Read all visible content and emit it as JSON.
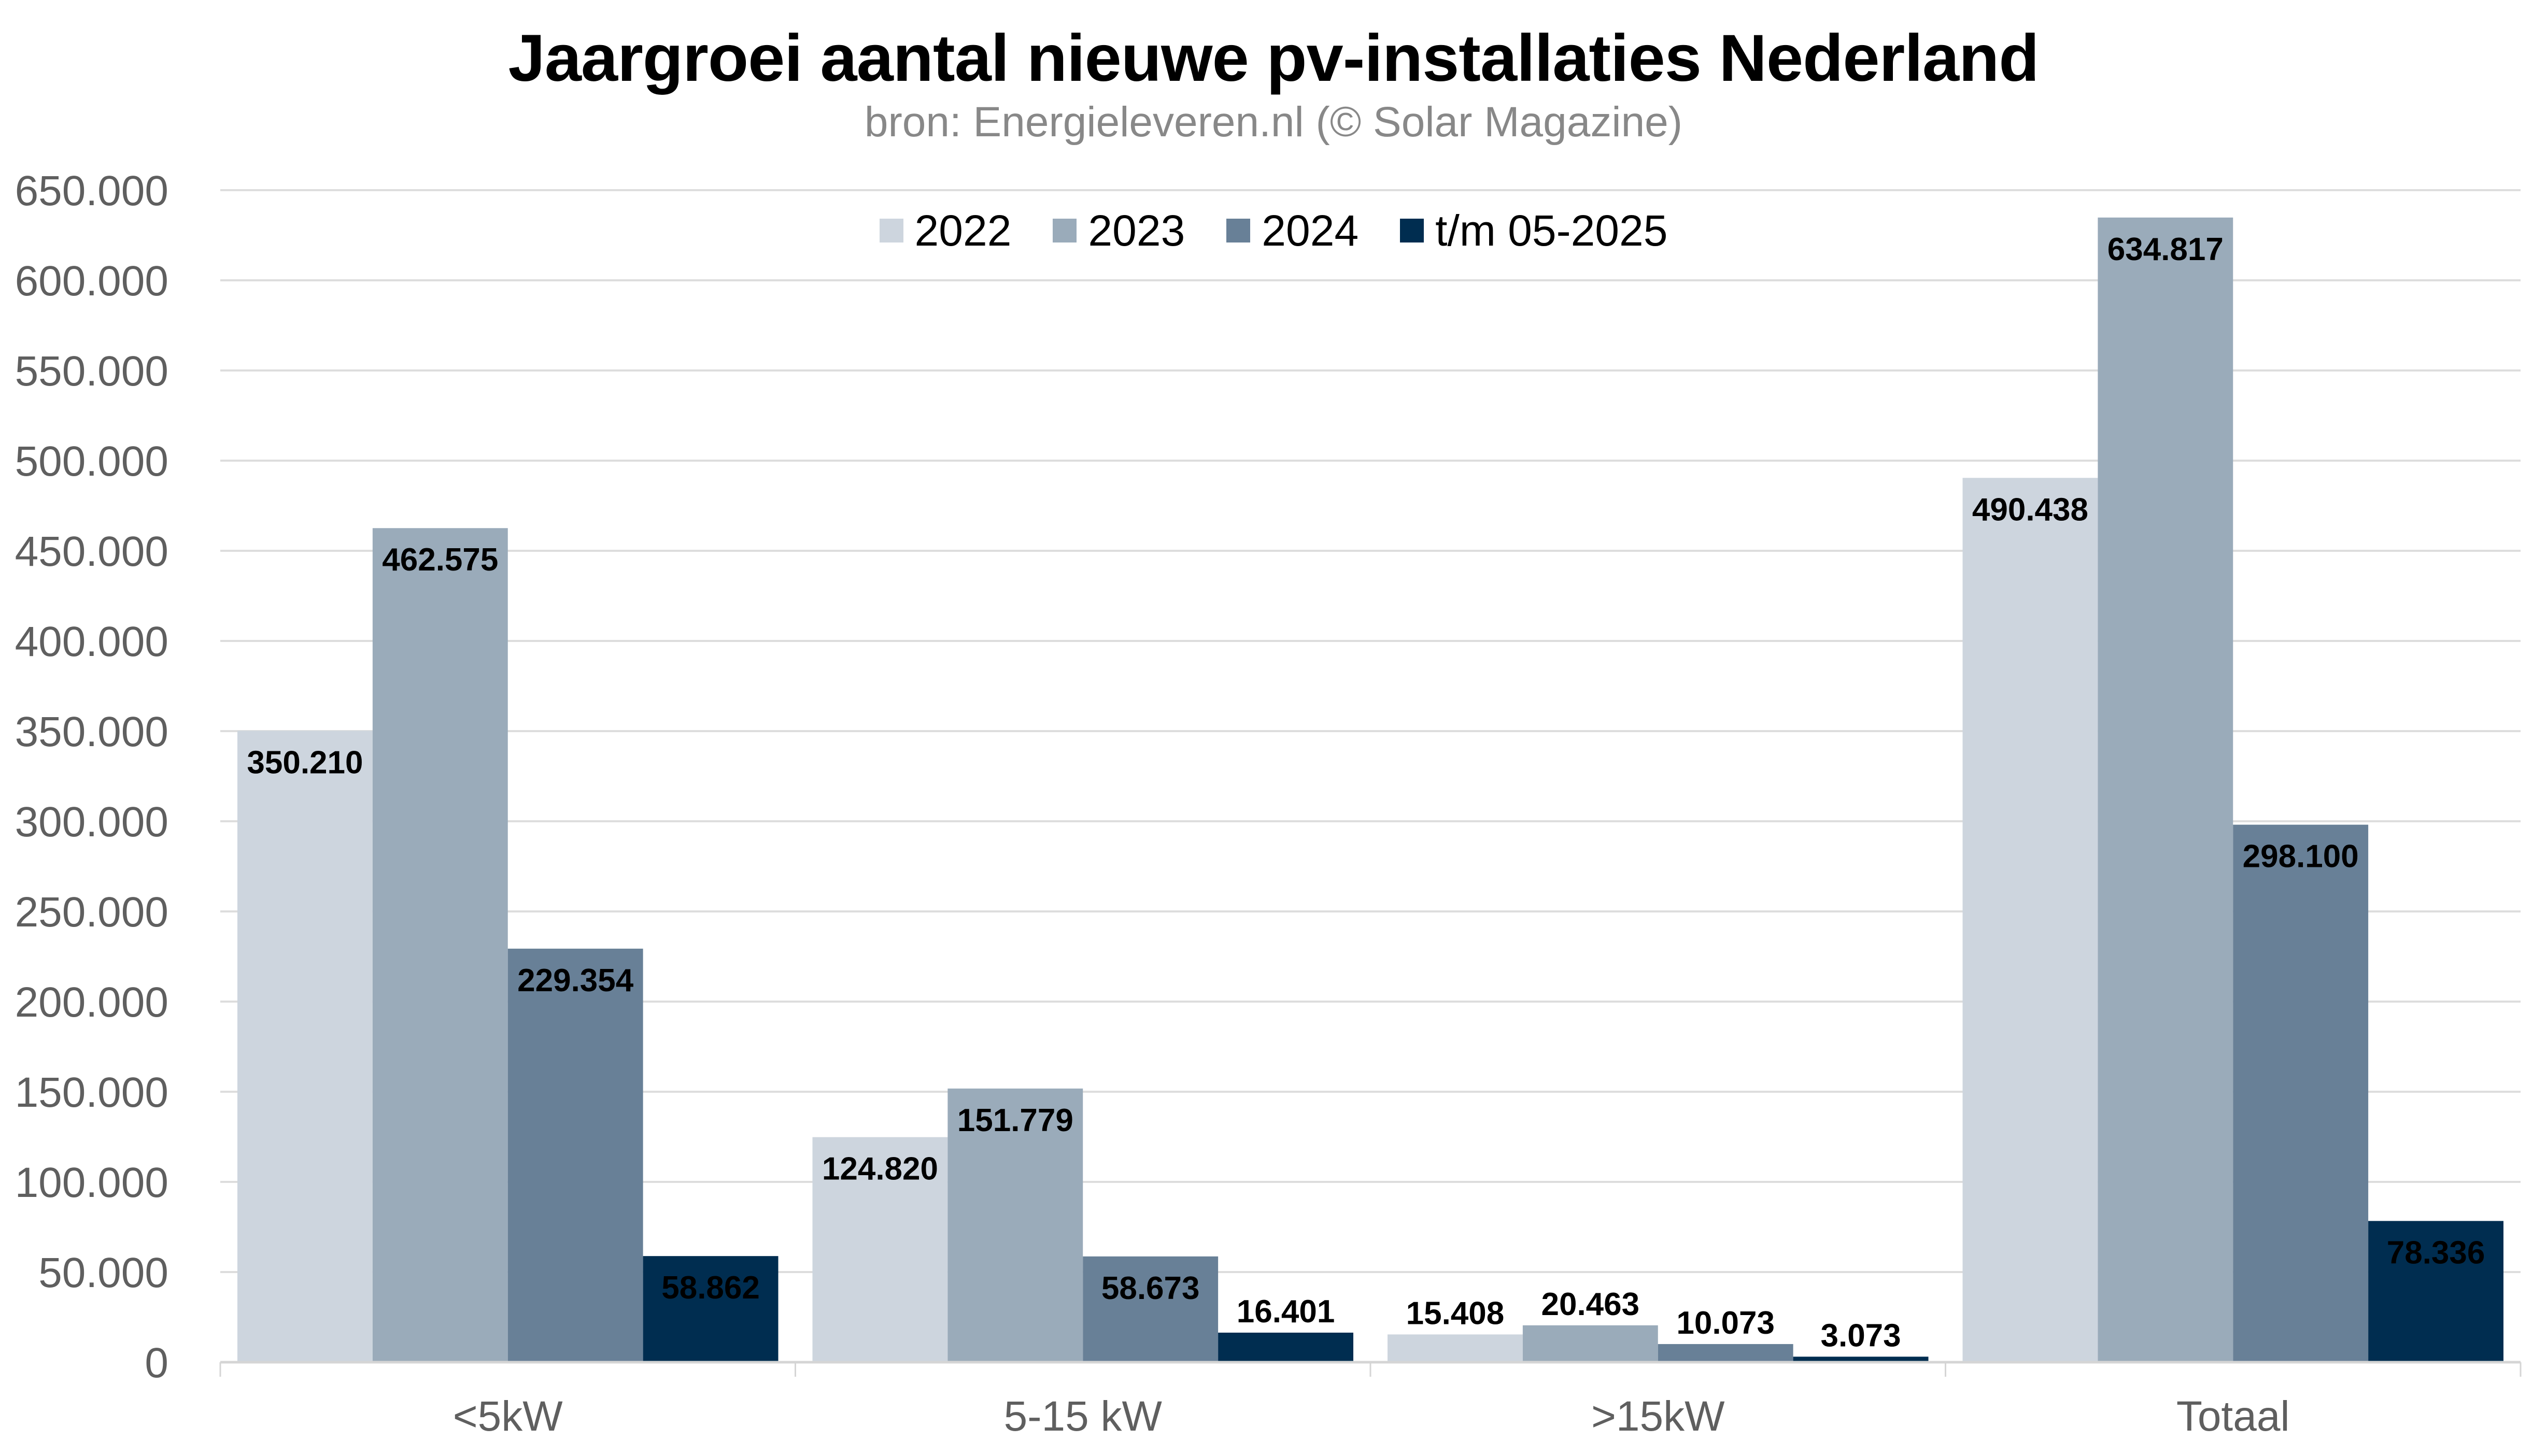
{
  "chart_data": {
    "type": "bar",
    "title": "Jaargroei aantal nieuwe pv-installaties Nederland",
    "subtitle": "bron: Energieleveren.nl (© Solar Magazine)",
    "xlabel": "",
    "ylabel": "",
    "categories": [
      "<5kW",
      "5-15 kW",
      ">15kW",
      "Totaal"
    ],
    "series": [
      {
        "name": "2022",
        "color": "#CDD5DE",
        "values": [
          350210,
          124820,
          15408,
          490438
        ],
        "labels": [
          "350.210",
          "124.820",
          "15.408",
          "490.438"
        ]
      },
      {
        "name": "2023",
        "color": "#9AABBA",
        "values": [
          462575,
          151779,
          20463,
          634817
        ],
        "labels": [
          "462.575",
          "151.779",
          "20.463",
          "634.817"
        ]
      },
      {
        "name": "2024",
        "color": "#688097",
        "values": [
          229354,
          58673,
          10073,
          298100
        ],
        "labels": [
          "229.354",
          "58.673",
          "10.073",
          "298.100"
        ]
      },
      {
        "name": "t/m 05-2025",
        "color": "#002D50",
        "values": [
          58862,
          16401,
          3073,
          78336
        ],
        "labels": [
          "58.862",
          "16.401",
          "3.073",
          "78.336"
        ]
      }
    ],
    "ylim": [
      0,
      650000
    ],
    "yticks": [
      0,
      50000,
      100000,
      150000,
      200000,
      250000,
      300000,
      350000,
      400000,
      450000,
      500000,
      550000,
      600000,
      650000
    ],
    "ytick_labels": [
      "0",
      "50.000",
      "100.000",
      "150.000",
      "200.000",
      "250.000",
      "300.000",
      "350.000",
      "400.000",
      "450.000",
      "500.000",
      "550.000",
      "600.000",
      "650.000"
    ],
    "grid": true,
    "legend_position": "top-center",
    "colors": {
      "gridline": "#DDDDDD",
      "axis_text": "#5F5F5F",
      "data_label": "#000000"
    }
  }
}
